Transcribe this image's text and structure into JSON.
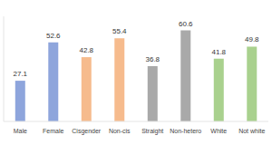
{
  "chart_data": {
    "type": "bar",
    "categories": [
      "Male",
      "Female",
      "Cisgender",
      "Non-cis",
      "Straight",
      "Non-hetero",
      "White",
      "Not white"
    ],
    "values": [
      27.1,
      52.6,
      42.8,
      55.4,
      36.8,
      60.6,
      41.8,
      49.8
    ],
    "colors": [
      "#8ea5dc",
      "#8ea5dc",
      "#f6bb8d",
      "#f6bb8d",
      "#a9a9a9",
      "#a9a9a9",
      "#a9d18e",
      "#a9d18e"
    ],
    "ylim": [
      0,
      70
    ],
    "data_labels": true,
    "tick_labels": "x"
  }
}
